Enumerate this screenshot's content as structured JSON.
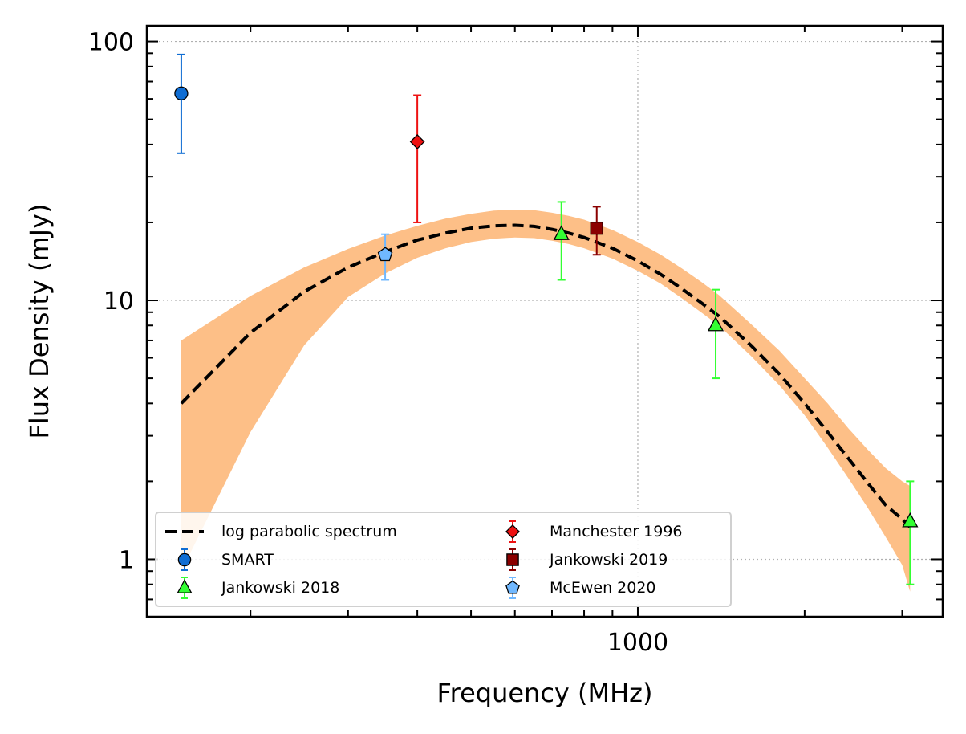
{
  "chart_data": {
    "type": "scatter",
    "title": "",
    "xlabel": "Frequency (MHz)",
    "ylabel": "Flux Density (mJy)",
    "xscale": "log",
    "yscale": "log",
    "xlim": [
      130,
      3550
    ],
    "ylim": [
      0.6,
      115
    ],
    "xticks": [
      {
        "value": 1000,
        "label": "1000"
      }
    ],
    "yticks": [
      {
        "value": 1,
        "label": "1"
      },
      {
        "value": 10,
        "label": "10"
      },
      {
        "value": 100,
        "label": "100"
      }
    ],
    "grid": true,
    "legend_position": "lower-left",
    "legend_columns": 2,
    "model": {
      "name": "log parabolic spectrum",
      "color": "#000000",
      "band_color": "#fdbf87",
      "x": [
        150,
        200,
        250,
        300,
        350,
        400,
        450,
        500,
        550,
        600,
        650,
        700,
        750,
        800,
        900,
        1000,
        1100,
        1200,
        1300,
        1400,
        1600,
        1800,
        2000,
        2200,
        2400,
        2600,
        2800,
        3000,
        3100
      ],
      "y": [
        4.0,
        7.5,
        10.8,
        13.4,
        15.4,
        17.1,
        18.2,
        19.0,
        19.4,
        19.5,
        19.3,
        18.8,
        18.2,
        17.5,
        15.9,
        14.2,
        12.6,
        11.1,
        9.8,
        8.7,
        6.7,
        5.2,
        4.0,
        3.1,
        2.45,
        1.97,
        1.62,
        1.43,
        1.33
      ],
      "y_lower": [
        0.9,
        3.1,
        6.7,
        10.3,
        12.7,
        14.6,
        15.9,
        16.8,
        17.3,
        17.5,
        17.4,
        17.0,
        16.5,
        15.9,
        14.5,
        13.0,
        11.6,
        10.2,
        9.0,
        8.0,
        6.1,
        4.7,
        3.6,
        2.7,
        2.05,
        1.58,
        1.22,
        0.95,
        0.75
      ],
      "y_upper": [
        7.0,
        10.4,
        13.4,
        15.8,
        17.8,
        19.4,
        20.7,
        21.6,
        22.2,
        22.4,
        22.3,
        21.8,
        21.2,
        20.5,
        18.7,
        16.8,
        15.0,
        13.3,
        11.8,
        10.5,
        8.1,
        6.4,
        5.0,
        4.0,
        3.2,
        2.65,
        2.25,
        2.0,
        1.92
      ]
    },
    "series": [
      {
        "name": "SMART",
        "marker": "circle",
        "color": "#0f6dd3",
        "errcolor": "#0f6dd3",
        "points": [
          {
            "x": 150,
            "y": 63,
            "ylo": 37,
            "yhi": 89
          }
        ]
      },
      {
        "name": "Jankowski 2018",
        "marker": "triangle",
        "color": "#33ff33",
        "errcolor": "#33ff33",
        "points": [
          {
            "x": 728,
            "y": 18,
            "ylo": 12,
            "yhi": 24
          },
          {
            "x": 1382,
            "y": 8,
            "ylo": 5,
            "yhi": 11
          },
          {
            "x": 3100,
            "y": 1.4,
            "ylo": 0.8,
            "yhi": 2.0
          }
        ]
      },
      {
        "name": "Manchester 1996",
        "marker": "diamond",
        "color": "#ee1111",
        "errcolor": "#ee1111",
        "points": [
          {
            "x": 400,
            "y": 41,
            "ylo": 20,
            "yhi": 62
          }
        ]
      },
      {
        "name": "Jankowski 2019",
        "marker": "square",
        "color": "#8b0000",
        "errcolor": "#8b0000",
        "points": [
          {
            "x": 843,
            "y": 19,
            "ylo": 15,
            "yhi": 23
          }
        ]
      },
      {
        "name": "McEwen 2020",
        "marker": "pentagon",
        "color": "#70b8ff",
        "errcolor": "#70b8ff",
        "points": [
          {
            "x": 350,
            "y": 15,
            "ylo": 12,
            "yhi": 18
          }
        ]
      }
    ]
  }
}
